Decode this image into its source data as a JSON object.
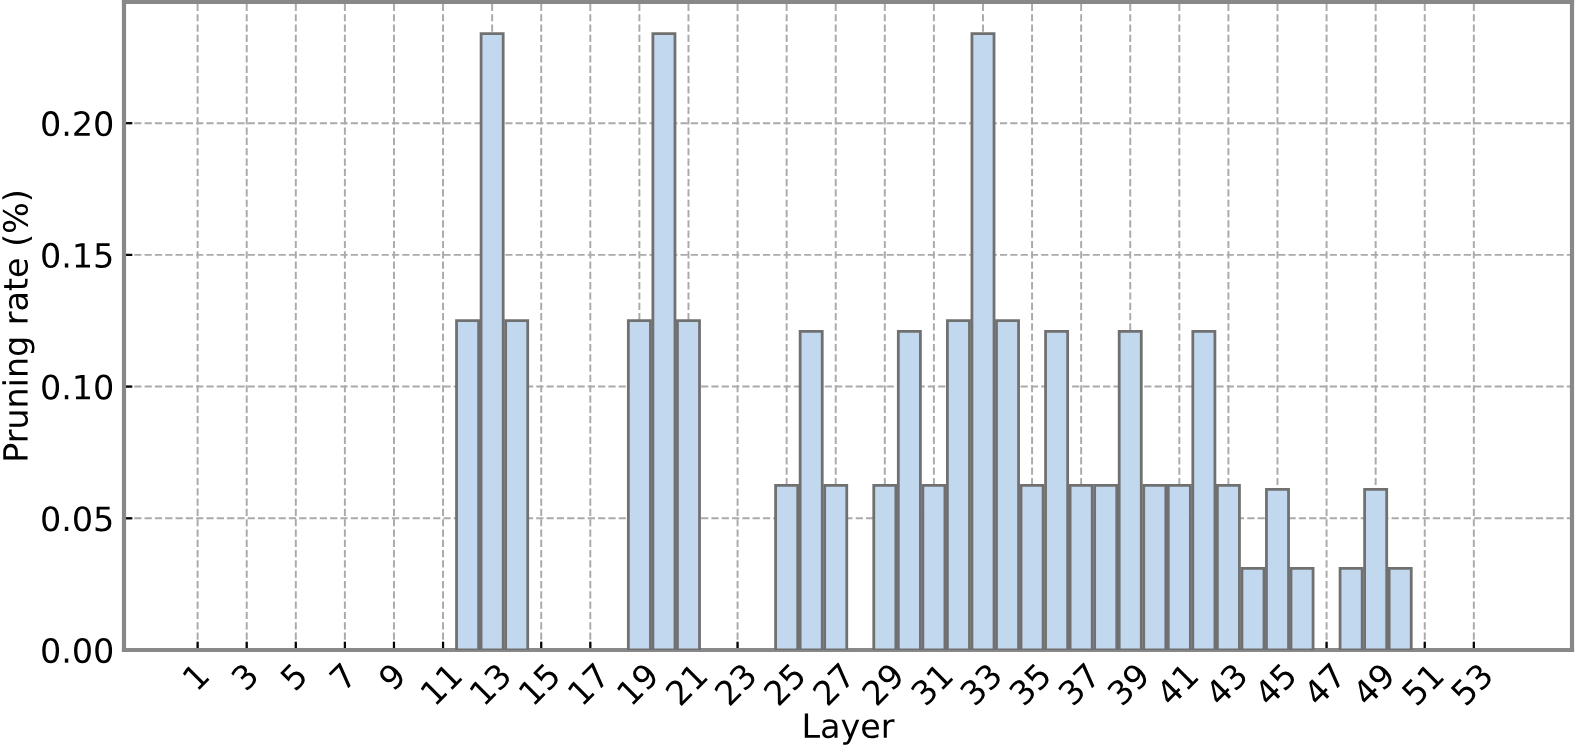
{
  "chart_data": {
    "type": "bar",
    "xlabel": "Layer",
    "ylabel": "Pruning rate (%)",
    "x": [
      12,
      13,
      14,
      19,
      20,
      21,
      25,
      26,
      27,
      29,
      30,
      31,
      32,
      33,
      34,
      35,
      36,
      37,
      38,
      39,
      40,
      41,
      42,
      43,
      44,
      45,
      46,
      48,
      49,
      50
    ],
    "values": [
      0.125,
      0.234,
      0.125,
      0.125,
      0.234,
      0.125,
      0.0625,
      0.121,
      0.0625,
      0.0625,
      0.121,
      0.0625,
      0.125,
      0.234,
      0.125,
      0.0625,
      0.121,
      0.0625,
      0.0625,
      0.121,
      0.0625,
      0.0625,
      0.121,
      0.0625,
      0.031,
      0.061,
      0.031,
      0.031,
      0.061,
      0.031
    ],
    "color": "#c2d8ee",
    "xlim": [
      -2,
      57
    ],
    "xticks": [
      1,
      3,
      5,
      7,
      9,
      11,
      13,
      15,
      17,
      19,
      21,
      23,
      25,
      27,
      29,
      31,
      33,
      35,
      37,
      39,
      41,
      43,
      45,
      47,
      49,
      51,
      53
    ],
    "ylim": [
      0,
      0.246
    ],
    "yticks": [
      {
        "value": 0,
        "label": "0.00"
      },
      {
        "value": 0.05,
        "label": "0.05"
      },
      {
        "value": 0.1,
        "label": "0.10"
      },
      {
        "value": 0.15,
        "label": "0.15"
      },
      {
        "value": 0.2,
        "label": "0.20"
      }
    ],
    "grid": true
  }
}
